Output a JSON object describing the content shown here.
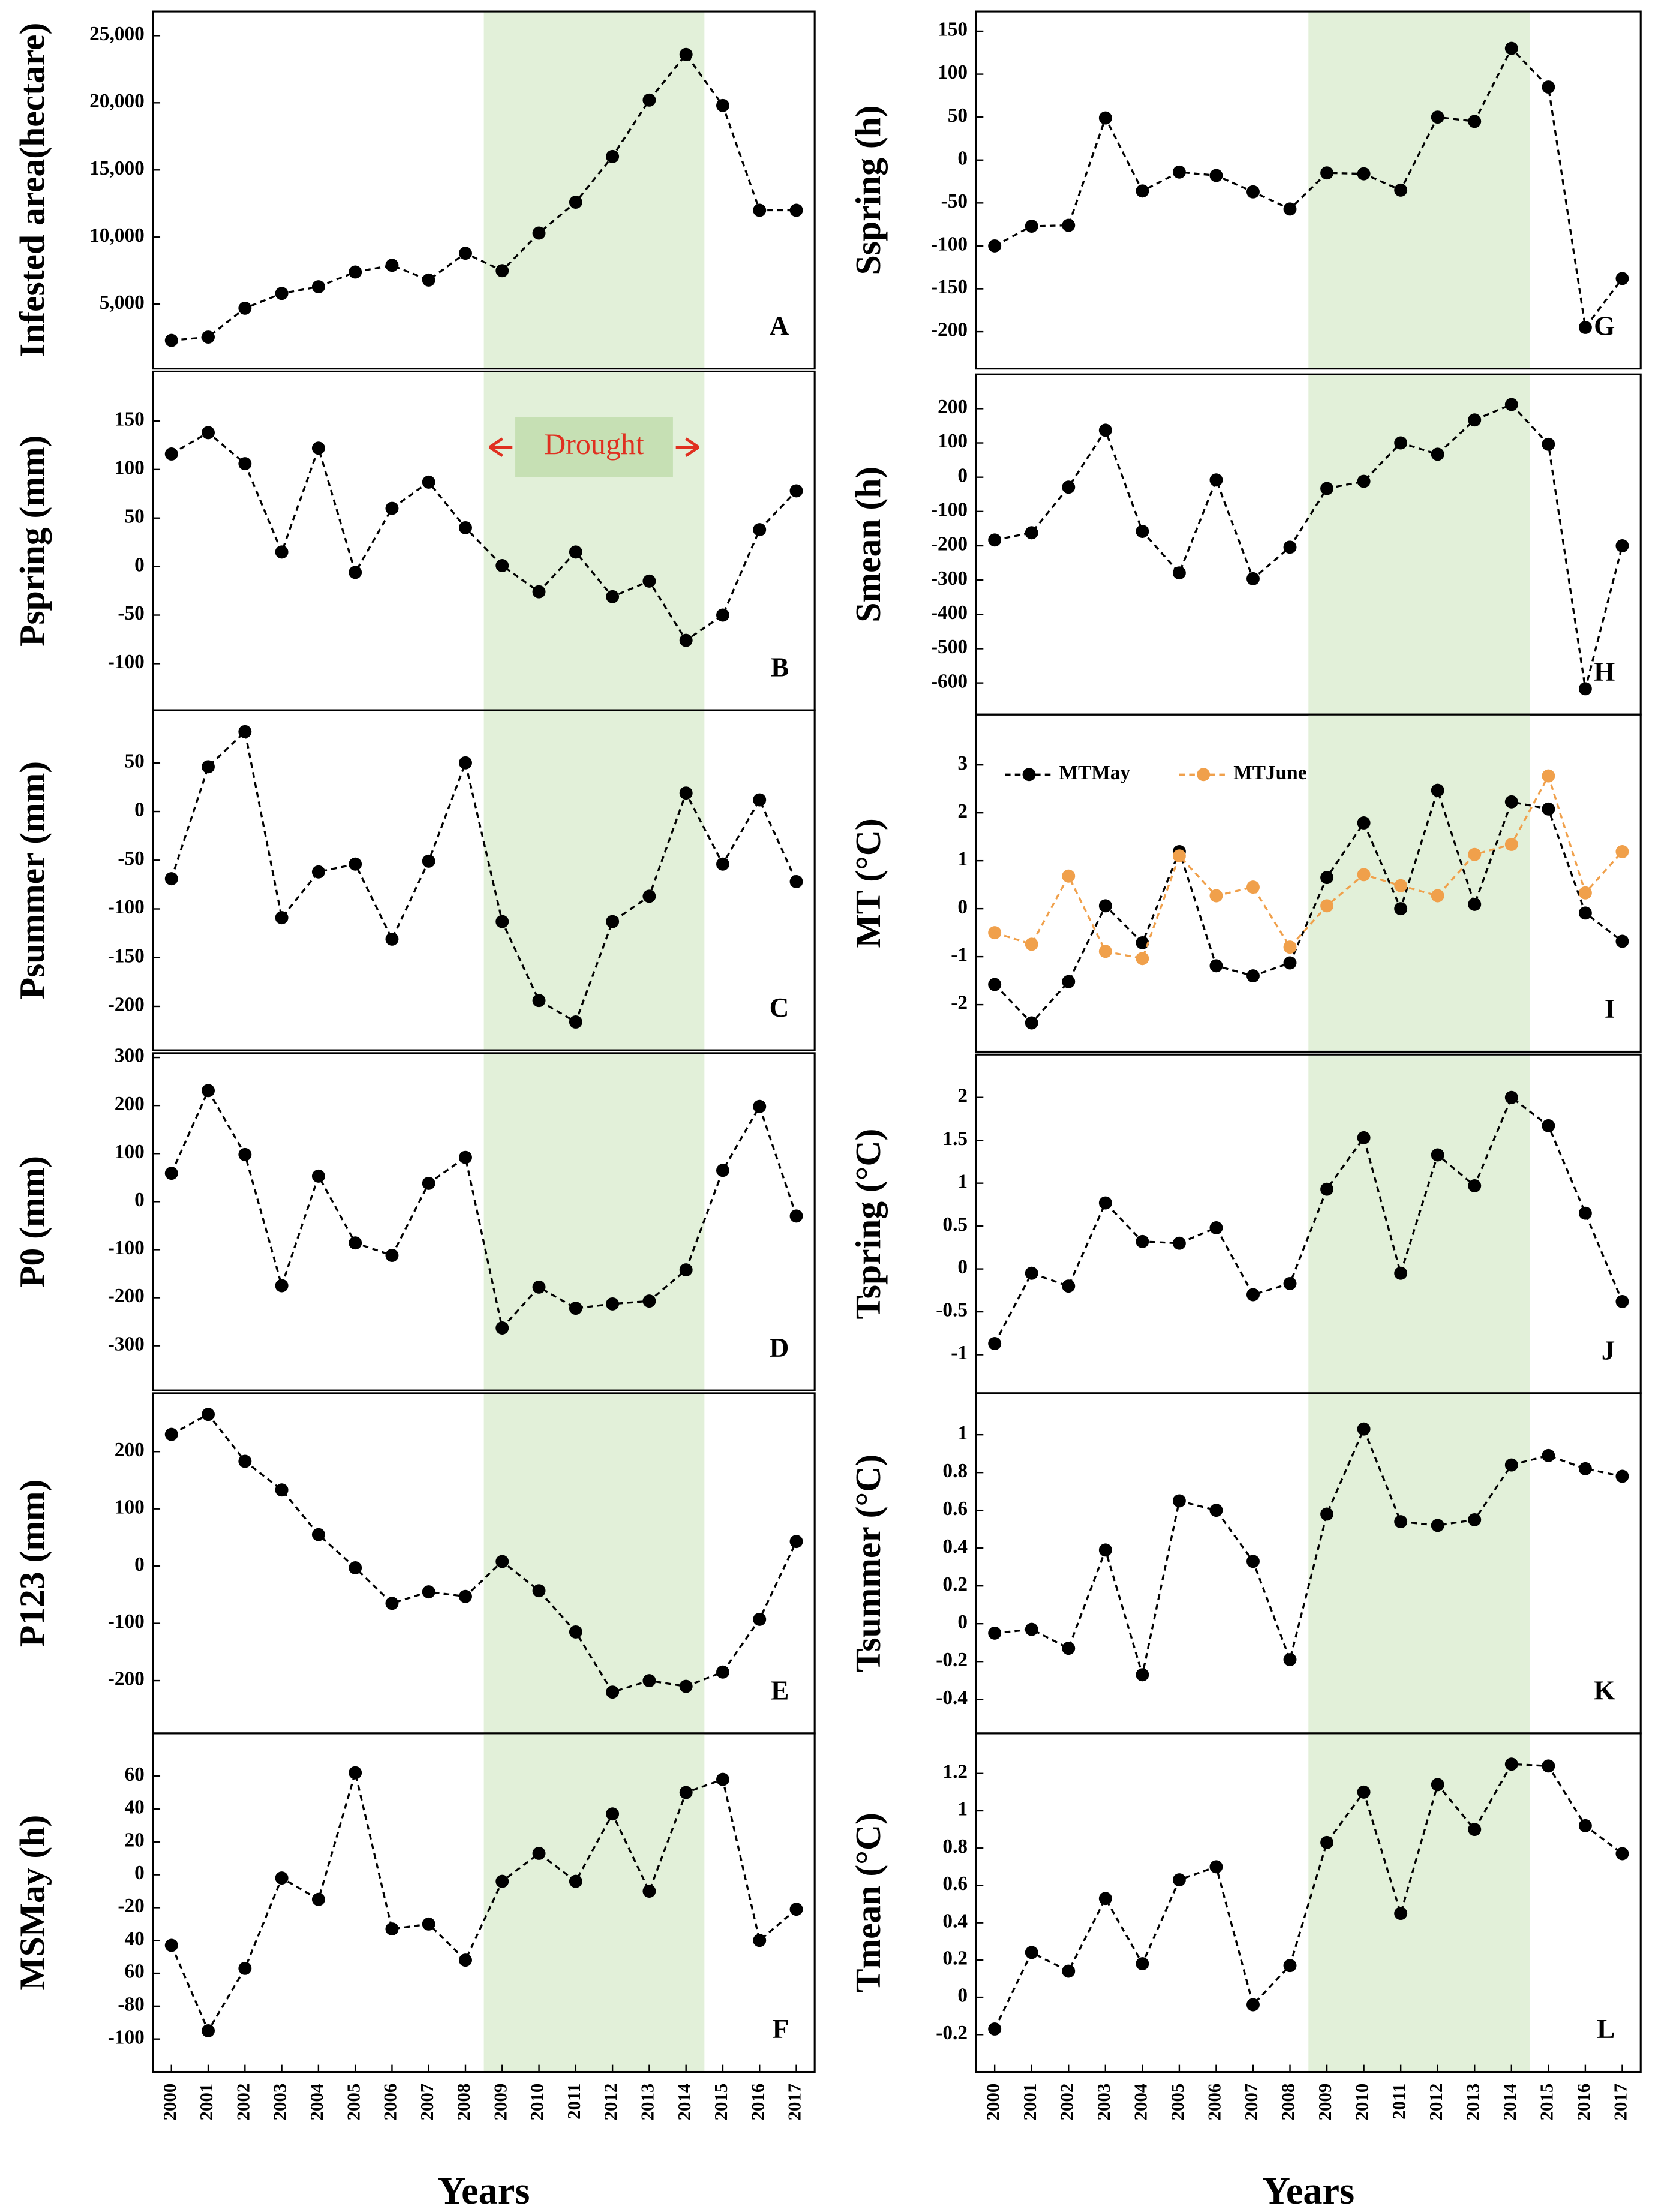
{
  "chart_data": [
    {
      "type": "line",
      "ylabel": "Infested area(hectare)",
      "panel": "A",
      "x": [
        2000,
        2001,
        2002,
        2003,
        2004,
        2005,
        2006,
        2007,
        2008,
        2009,
        2010,
        2011,
        2012,
        2013,
        2014,
        2015,
        2016,
        2017
      ],
      "xlim": [
        1999.5,
        2017.5
      ],
      "ylim": [
        200,
        26800
      ],
      "yticks": [
        {
          "value": 5000,
          "label": "5,000"
        },
        {
          "value": 10000,
          "label": "10,000"
        },
        {
          "value": 15000,
          "label": "15,000"
        },
        {
          "value": 20000,
          "label": "20,000"
        },
        {
          "value": 25000,
          "label": "25,000"
        }
      ],
      "color": "#000000",
      "values": [
        2300,
        2550,
        4700,
        5800,
        6300,
        7400,
        7900,
        6800,
        8800,
        7500,
        10300,
        12600,
        16000,
        20200,
        23600,
        19800,
        12000,
        12000
      ],
      "shade": [
        2008.5,
        2014.5
      ],
      "shade_color": "#e2f0d9"
    },
    {
      "type": "line",
      "ylabel": "Pspring (mm)",
      "panel": "B",
      "annotation": "Drought",
      "x": [
        2000,
        2001,
        2002,
        2003,
        2004,
        2005,
        2006,
        2007,
        2008,
        2009,
        2010,
        2011,
        2012,
        2013,
        2014,
        2015,
        2016,
        2017
      ],
      "xlim": [
        1999.5,
        2017.5
      ],
      "ylim": [
        -148,
        201
      ],
      "yticks": [
        150,
        100,
        50,
        0,
        -50,
        -100
      ],
      "color": "#000000",
      "values": [
        116,
        138,
        106,
        15,
        122,
        -6,
        60,
        87,
        40,
        1,
        -26,
        15,
        -31,
        -15,
        -76,
        -50,
        38,
        78
      ],
      "shade": [
        2008.5,
        2014.5
      ],
      "shade_color": "#e2f0d9"
    },
    {
      "type": "line",
      "ylabel": "Psummer (mm)",
      "panel": "C",
      "x": [
        2000,
        2001,
        2002,
        2003,
        2004,
        2005,
        2006,
        2007,
        2008,
        2009,
        2010,
        2011,
        2012,
        2013,
        2014,
        2015,
        2016,
        2017
      ],
      "xlim": [
        1999.5,
        2017.5
      ],
      "ylim": [
        -245,
        104
      ],
      "yticks": [
        50,
        0,
        -50,
        -100,
        -150,
        -200
      ],
      "color": "#000000",
      "values": [
        -69,
        46,
        82,
        -109,
        -62,
        -54,
        -131,
        -51,
        50,
        -113,
        -194,
        -216,
        -113,
        -87,
        19,
        -54,
        12,
        -72
      ],
      "shade": [
        2008.5,
        2014.5
      ],
      "shade_color": "#e2f0d9"
    },
    {
      "type": "line",
      "ylabel": "P0 (mm)",
      "panel": "D",
      "x": [
        2000,
        2001,
        2002,
        2003,
        2004,
        2005,
        2006,
        2007,
        2008,
        2009,
        2010,
        2011,
        2012,
        2013,
        2014,
        2015,
        2016,
        2017
      ],
      "xlim": [
        1999.5,
        2017.5
      ],
      "ylim": [
        -393,
        309
      ],
      "yticks": [
        300,
        200,
        100,
        0,
        -100,
        -200,
        -300
      ],
      "color": "#000000",
      "values": [
        59,
        231,
        98,
        -175,
        53,
        -86,
        -112,
        38,
        92,
        -263,
        -178,
        -222,
        -213,
        -207,
        -142,
        65,
        198,
        -30
      ],
      "shade": [
        2008.5,
        2014.5
      ],
      "shade_color": "#e2f0d9"
    },
    {
      "type": "line",
      "ylabel": "P123 (mm)",
      "panel": "E",
      "x": [
        2000,
        2001,
        2002,
        2003,
        2004,
        2005,
        2006,
        2007,
        2008,
        2009,
        2010,
        2011,
        2012,
        2013,
        2014,
        2015,
        2016,
        2017
      ],
      "xlim": [
        1999.5,
        2017.5
      ],
      "ylim": [
        -292,
        302
      ],
      "yticks": [
        200,
        100,
        0,
        -100,
        -200
      ],
      "color": "#000000",
      "values": [
        230,
        265,
        183,
        133,
        55,
        -3,
        -65,
        -45,
        -53,
        8,
        -43,
        -115,
        -220,
        -200,
        -210,
        -185,
        -93,
        43
      ],
      "shade": [
        2008.5,
        2014.5
      ],
      "shade_color": "#e2f0d9"
    },
    {
      "type": "line",
      "ylabel": "MSMay (h)",
      "panel": "F",
      "xlabel": "Years",
      "x": [
        2000,
        2001,
        2002,
        2003,
        2004,
        2005,
        2006,
        2007,
        2008,
        2009,
        2010,
        2011,
        2012,
        2013,
        2014,
        2015,
        2016,
        2017
      ],
      "xlim": [
        1999.5,
        2017.5
      ],
      "xticks": [
        2000,
        2001,
        2002,
        2003,
        2004,
        2005,
        2006,
        2007,
        2008,
        2009,
        2010,
        2011,
        2012,
        2013,
        2014,
        2015,
        2016,
        2017
      ],
      "ylim": [
        -120,
        86
      ],
      "yticks": [
        60,
        40,
        20,
        0,
        -20,
        {
          "value": -40,
          "label": "40"
        },
        {
          "value": -60,
          "label": "60"
        },
        -80,
        -100
      ],
      "color": "#000000",
      "values": [
        -43,
        -95,
        -57,
        -2,
        -15,
        62,
        -33,
        -30,
        -52,
        -4,
        13,
        -4,
        37,
        -10,
        50,
        58,
        -40,
        -21
      ],
      "shade": [
        2008.5,
        2014.5
      ],
      "shade_color": "#e2f0d9"
    },
    {
      "type": "line",
      "ylabel": "Sspring (h)",
      "panel": "G",
      "x": [
        2000,
        2001,
        2002,
        2003,
        2004,
        2005,
        2006,
        2007,
        2008,
        2009,
        2010,
        2011,
        2012,
        2013,
        2014,
        2015,
        2016,
        2017
      ],
      "xlim": [
        1999.5,
        2017.5
      ],
      "ylim": [
        -243,
        173
      ],
      "yticks": [
        150,
        100,
        50,
        0,
        -50,
        -100,
        -150,
        -200
      ],
      "color": "#000000",
      "values": [
        -100,
        -77,
        -76,
        49,
        -36,
        -14,
        -18,
        -37,
        -57,
        -15,
        -16,
        -35,
        50,
        45,
        130,
        85,
        -195,
        -138
      ],
      "shade": [
        2008.5,
        2014.5
      ],
      "shade_color": "#e2f0d9"
    },
    {
      "type": "line",
      "ylabel": "Smean (h)",
      "panel": "H",
      "x": [
        2000,
        2001,
        2002,
        2003,
        2004,
        2005,
        2006,
        2007,
        2008,
        2009,
        2010,
        2011,
        2012,
        2013,
        2014,
        2015,
        2016,
        2017
      ],
      "xlim": [
        1999.5,
        2017.5
      ],
      "ylim": [
        -692,
        300
      ],
      "yticks": [
        200,
        100,
        0,
        -100,
        -200,
        -300,
        -400,
        -500,
        -600
      ],
      "color": "#000000",
      "values": [
        -183,
        -162,
        -29,
        137,
        -158,
        -279,
        -8,
        -296,
        -204,
        -33,
        -12,
        100,
        67,
        167,
        212,
        96,
        -617,
        -200
      ],
      "shade": [
        2008.5,
        2014.5
      ],
      "shade_color": "#e2f0d9"
    },
    {
      "type": "line",
      "ylabel": "MT (°C)",
      "panel": "I",
      "legend": "top-left",
      "x": [
        2000,
        2001,
        2002,
        2003,
        2004,
        2005,
        2006,
        2007,
        2008,
        2009,
        2010,
        2011,
        2012,
        2013,
        2014,
        2015,
        2016,
        2017
      ],
      "xlim": [
        1999.5,
        2017.5
      ],
      "ylim": [
        -2.98,
        4.05
      ],
      "yticks": [
        3,
        2,
        1,
        0,
        -1,
        -2
      ],
      "series": [
        {
          "name": "MTMay",
          "color": "#000000",
          "values": [
            -1.58,
            -2.38,
            -1.52,
            0.06,
            -0.71,
            1.19,
            -1.19,
            -1.4,
            -1.13,
            0.65,
            1.79,
            0.0,
            2.47,
            0.09,
            2.23,
            2.08,
            -0.09,
            -0.68
          ]
        },
        {
          "name": "MTJune",
          "color": "#f0a04b",
          "values": [
            -0.5,
            -0.74,
            0.68,
            -0.89,
            -1.04,
            1.1,
            0.27,
            0.45,
            -0.8,
            0.06,
            0.71,
            0.48,
            0.27,
            1.13,
            1.34,
            2.77,
            0.33,
            1.19
          ]
        }
      ],
      "shade": [
        2008.5,
        2014.5
      ],
      "shade_color": "#e2f0d9"
    },
    {
      "type": "line",
      "ylabel": "Tspring (°C)",
      "panel": "J",
      "x": [
        2000,
        2001,
        2002,
        2003,
        2004,
        2005,
        2006,
        2007,
        2008,
        2009,
        2010,
        2011,
        2012,
        2013,
        2014,
        2015,
        2016,
        2017
      ],
      "xlim": [
        1999.5,
        2017.5
      ],
      "ylim": [
        -1.45,
        2.5
      ],
      "yticks": [
        2,
        1.5,
        1,
        0.5,
        0,
        -0.5,
        -1
      ],
      "color": "#000000",
      "values": [
        -0.87,
        -0.05,
        -0.2,
        0.77,
        0.32,
        0.3,
        0.48,
        -0.3,
        -0.17,
        0.93,
        1.53,
        -0.05,
        1.33,
        0.97,
        2.0,
        1.67,
        0.65,
        -0.38
      ],
      "shade": [
        2008.5,
        2014.5
      ],
      "shade_color": "#e2f0d9"
    },
    {
      "type": "line",
      "ylabel": "Tsummer (°C)",
      "panel": "K",
      "x": [
        2000,
        2001,
        2002,
        2003,
        2004,
        2005,
        2006,
        2007,
        2008,
        2009,
        2010,
        2011,
        2012,
        2013,
        2014,
        2015,
        2016,
        2017
      ],
      "xlim": [
        1999.5,
        2017.5
      ],
      "ylim": [
        -0.58,
        1.22
      ],
      "yticks": [
        1,
        0.8,
        0.6,
        0.4,
        0.2,
        0,
        -0.2,
        -0.4
      ],
      "color": "#000000",
      "values": [
        -0.05,
        -0.03,
        -0.13,
        0.39,
        -0.27,
        0.65,
        0.6,
        0.33,
        -0.19,
        0.58,
        1.03,
        0.54,
        0.52,
        0.55,
        0.84,
        0.89,
        0.82,
        0.78
      ],
      "shade": [
        2008.5,
        2014.5
      ],
      "shade_color": "#e2f0d9"
    },
    {
      "type": "line",
      "ylabel": "Tmean (°C)",
      "panel": "L",
      "xlabel": "Years",
      "x": [
        2000,
        2001,
        2002,
        2003,
        2004,
        2005,
        2006,
        2007,
        2008,
        2009,
        2010,
        2011,
        2012,
        2013,
        2014,
        2015,
        2016,
        2017
      ],
      "xlim": [
        1999.5,
        2017.5
      ],
      "xticks": [
        2000,
        2001,
        2002,
        2003,
        2004,
        2005,
        2006,
        2007,
        2008,
        2009,
        2010,
        2011,
        2012,
        2013,
        2014,
        2015,
        2016,
        2017
      ],
      "ylim": [
        -0.4,
        1.415
      ],
      "yticks": [
        1.2,
        1,
        0.8,
        0.6,
        0.4,
        0.2,
        0,
        -0.2
      ],
      "color": "#000000",
      "values": [
        -0.17,
        0.24,
        0.14,
        0.53,
        0.18,
        0.63,
        0.7,
        -0.04,
        0.17,
        0.83,
        1.1,
        0.45,
        1.14,
        0.9,
        1.25,
        1.24,
        0.92,
        0.77
      ],
      "shade": [
        2008.5,
        2014.5
      ],
      "shade_color": "#e2f0d9"
    }
  ]
}
